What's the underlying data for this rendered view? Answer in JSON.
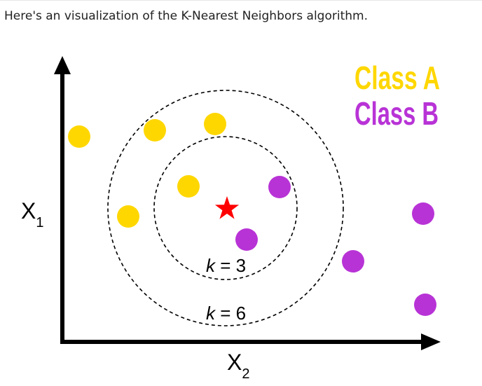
{
  "intro_text": "Here's an visualization of the K-Nearest Neighbors algorithm.",
  "colors": {
    "class_a": "#FFD700",
    "class_b": "#B833D6",
    "query": "#FF0000",
    "axis": "#000000"
  },
  "legend": {
    "class_a": "Class A",
    "class_b": "Class B"
  },
  "axes": {
    "y_label": "X",
    "y_sub": "1",
    "x_label": "X",
    "x_sub": "2"
  },
  "circles": {
    "inner": {
      "var": "k",
      "rest": " = 3",
      "k": 3
    },
    "outer": {
      "var": "k",
      "rest": " = 6",
      "k": 6
    }
  },
  "icons": {
    "query": "star-icon"
  }
}
